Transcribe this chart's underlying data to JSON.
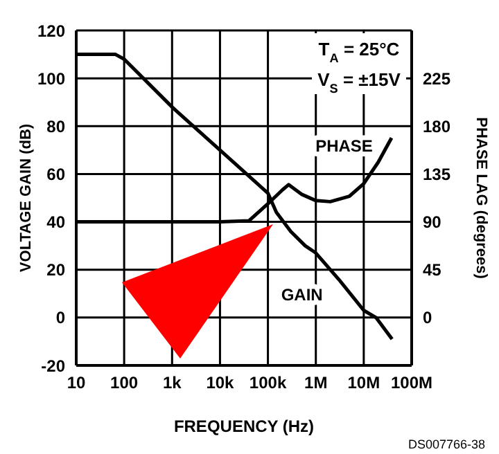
{
  "chart_data": {
    "type": "line",
    "xlabel": "FREQUENCY (Hz)",
    "ylabel": "VOLTAGE GAIN (dB)",
    "y2label": "PHASE LAG (degrees)",
    "log": "x",
    "grid": true,
    "legend": false,
    "marker": "none",
    "line_style": "solid",
    "xlim": [
      10,
      100000000
    ],
    "xticks": [
      10,
      100,
      {
        "value": 1000,
        "label": "1k"
      },
      {
        "value": 10000,
        "label": "10k"
      },
      {
        "value": 100000,
        "label": "100k"
      },
      {
        "value": 1000000,
        "label": "1M"
      },
      {
        "value": 10000000,
        "label": "10M"
      },
      {
        "value": 100000000,
        "label": "100M"
      }
    ],
    "ylim": [
      -20,
      120
    ],
    "yticks": [
      -20,
      0,
      20,
      40,
      60,
      80,
      100,
      120
    ],
    "y2lim": [
      -45,
      270
    ],
    "y2ticks": [
      0,
      45,
      90,
      135,
      180,
      225
    ],
    "series": [
      {
        "name": "GAIN",
        "color": "#000000",
        "x": [
          10,
          66,
          100,
          1000,
          10000,
          100000,
          150000,
          300000,
          600000,
          1000000,
          3000000,
          10000000,
          18000000,
          39000000
        ],
        "values": [
          110,
          110,
          108,
          88,
          70,
          52,
          44,
          36,
          30,
          27,
          16,
          3,
          0,
          -9
        ]
      },
      {
        "name": "PHASE",
        "color": "#000000",
        "axis": "y2",
        "x": [
          10,
          1000,
          10000,
          40000,
          100000,
          200000,
          270000,
          500000,
          1000000,
          2000000,
          5000000,
          10000000,
          20000000,
          38000000
        ],
        "values": [
          90,
          90,
          90,
          91,
          107,
          120,
          125,
          116,
          110,
          109,
          114,
          126,
          146,
          169
        ]
      }
    ],
    "annotations": [
      "T$_{A}$ = 25°C",
      "V$_{S}$ = ±15V",
      "DS007766-38"
    ]
  }
}
